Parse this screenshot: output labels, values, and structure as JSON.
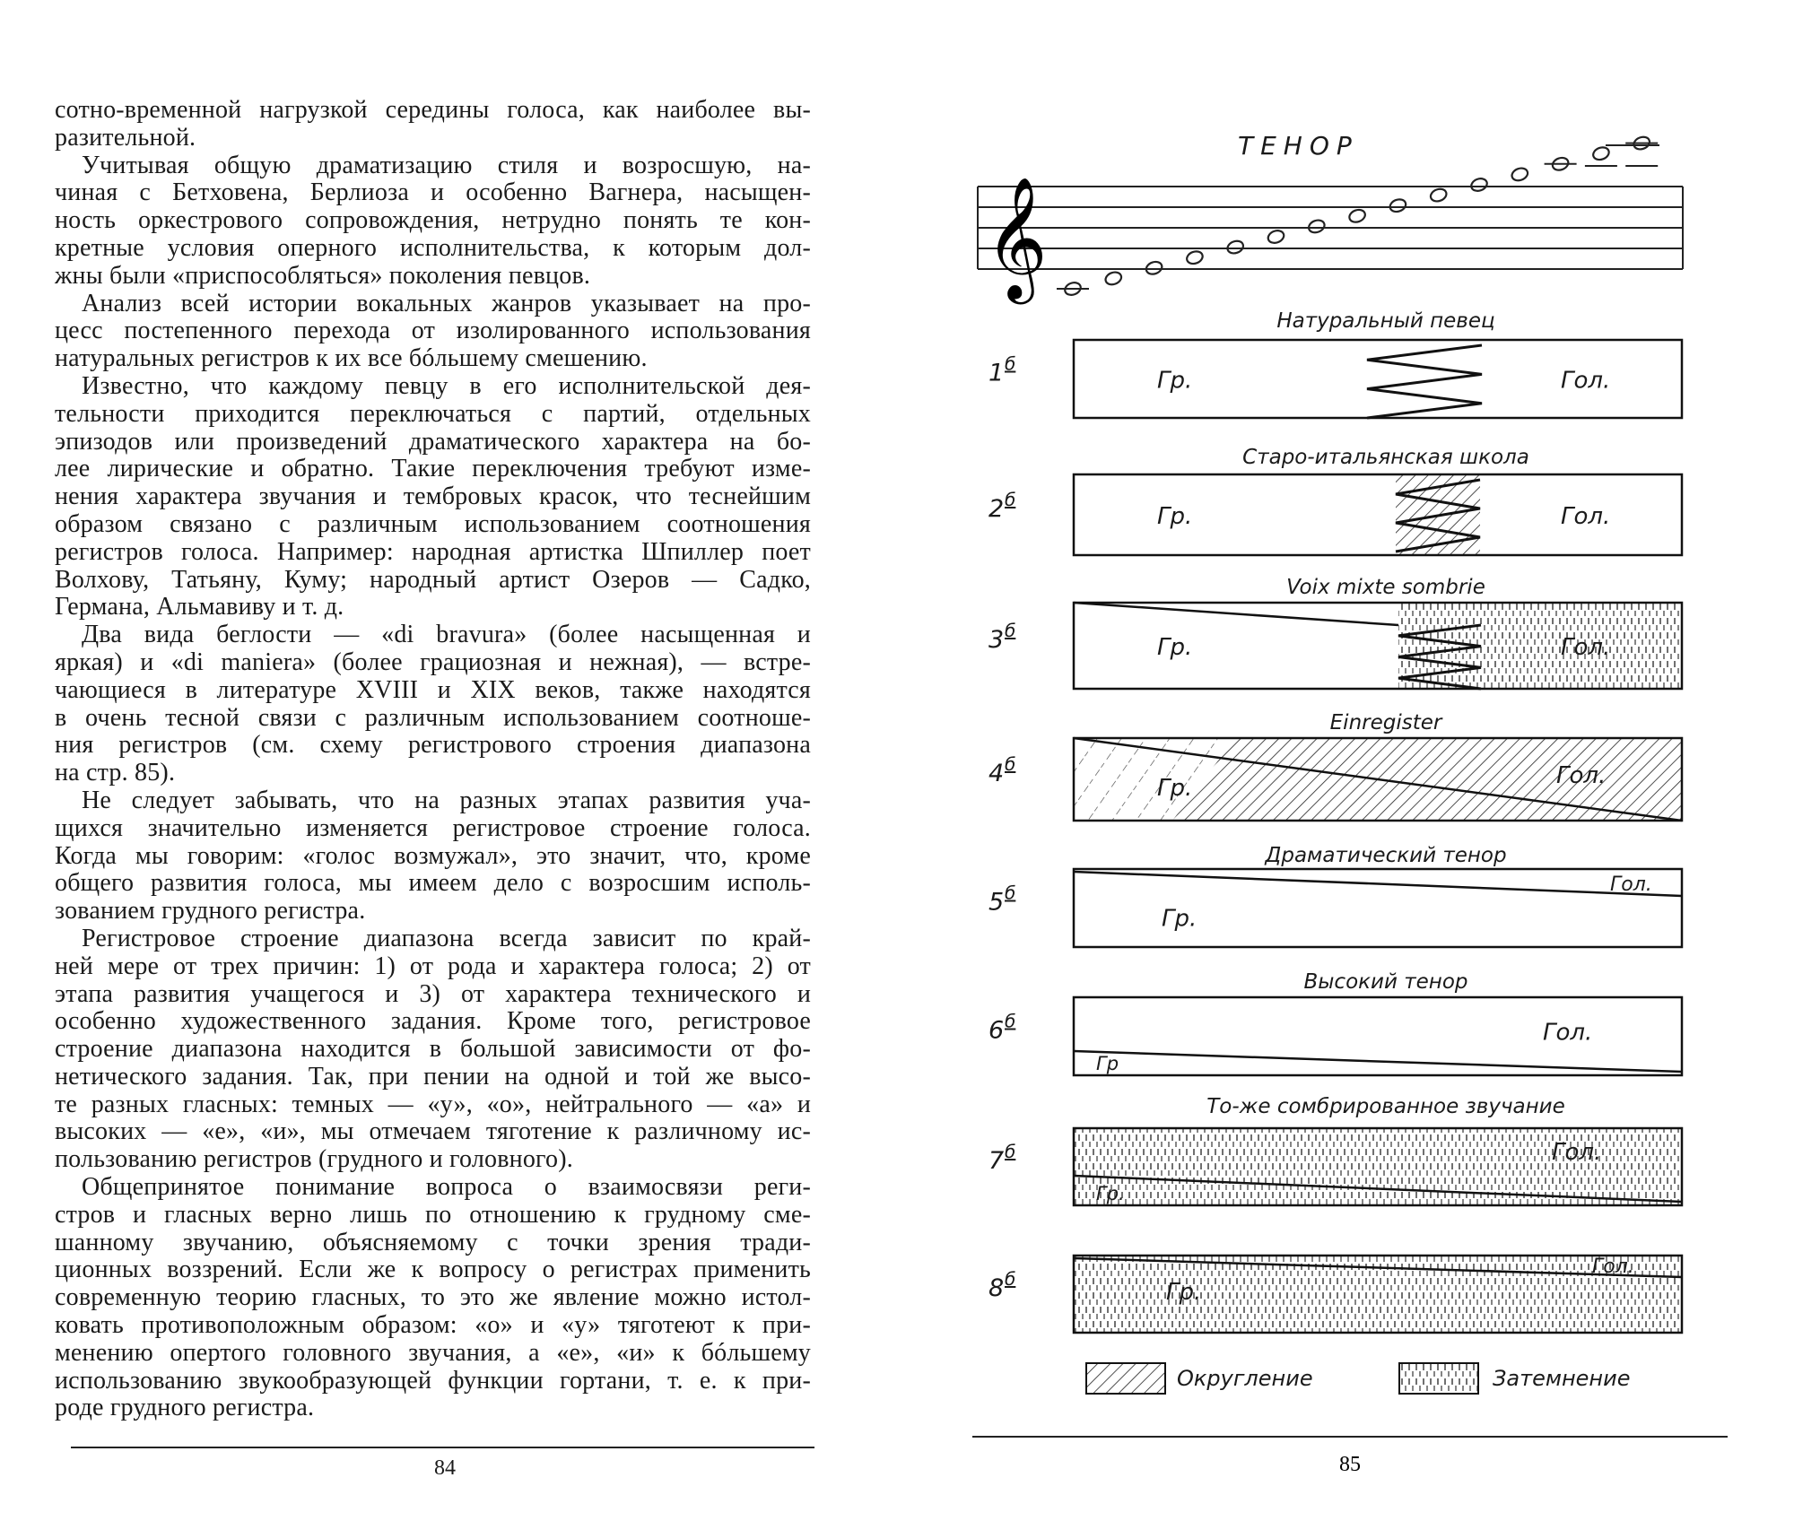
{
  "left_page": {
    "page_number": "84",
    "paragraphs": [
      {
        "lines": [
          "сотно-временной нагрузкой середины голоса, как наиболее вы-",
          "разительной."
        ]
      },
      {
        "lines": [
          "Учитывая общую драматизацию стиля и возросшую, на-",
          "чиная с Бетховена, Берлиоза и особенно Вагнера, насыщен-",
          "ность оркестрового сопровождения, нетрудно понять те кон-",
          "кретные условия оперного исполнительства, к которым дол-",
          "жны были «приспособляться» поколения певцов."
        ]
      },
      {
        "lines": [
          "Анализ всей истории вокальных жанров указывает на про-",
          "цесс постепенного перехода от изолированного использования",
          "натуральных регистров к их все бóльшему смешению."
        ]
      },
      {
        "lines": [
          "Известно, что каждому певцу в его исполнительской дея-",
          "тельности приходится переключаться с партий, отдельных",
          "эпизодов или произведений драматического характера на бо-",
          "лее лирические и обратно. Такие переключения требуют изме-",
          "нения характера звучания и тембровых красок, что теснейшим",
          "образом связано с различным использованием соотношения",
          "регистров голоса. Например: народная артистка Шпиллер поет",
          "Волхову, Татьяну, Куму; народный артист Озеров — Садко,",
          "Германа, Альмавиву и т. д."
        ]
      },
      {
        "lines": [
          "Два вида беглости — «di bravura» (более насыщенная и",
          "яркая) и «di maniera» (более грациозная и нежная), — встре-",
          "чающиеся в литературе XVIII и XIX веков, также находятся",
          "в очень тесной связи с различным использованием соотноше-",
          "ния регистров (см. схему регистрового строения диапазона",
          "на стр. 85)."
        ]
      },
      {
        "lines": [
          "Не следует забывать, что на разных этапах развития уча-",
          "щихся значительно изменяется регистровое строение голоса.",
          "Когда мы говорим: «голос возмужал», это значит, что, кроме",
          "общего развития голоса, мы имеем дело с возросшим исполь-",
          "зованием грудного регистра."
        ]
      },
      {
        "lines": [
          "Регистровое строение диапазона всегда зависит по край-",
          "ней мере от трех причин: 1) от рода и характера голоса; 2) от",
          "этапа развития учащегося и 3) от характера технического и",
          "особенно художественного задания. Кроме того, регистровое",
          "строение диапазона находится в большой зависимости от фо-",
          "нетического задания. Так, при пении на одной и той же высо-",
          "те разных гласных: темных — «у», «о», нейтрального — «а» и",
          "высоких — «е», «и», мы отмечаем тяготение к различному ис-",
          "пользованию регистров (грудного и головного)."
        ]
      },
      {
        "lines": [
          "Общепринятое понимание вопроса о взаимосвязи реги-",
          "стров и гласных верно лишь по отношению к грудному сме-",
          "шанному звучанию, объясняемому с точки зрения тради-",
          "ционных воззрений. Если же к вопросу о регистрах применить",
          "современную теорию гласных, то это же явление можно истол-",
          "ковать противоположным образом: «о» и «у» тяготеют к при-",
          "менению опертого головного звучания, а «е», «и» к бóльшему",
          "использованию звукообразующей функции гортани, т. е. к при-",
          "роде грудного регистра."
        ]
      }
    ]
  },
  "right_page": {
    "page_number": "85",
    "title": "ТЕНОР",
    "clef_icon": "treble-clef",
    "diagrams": [
      {
        "number": "1",
        "sup": "б",
        "title": "Натуральный певец",
        "chest": "Гр.",
        "head": "Гол."
      },
      {
        "number": "2",
        "sup": "б",
        "title": "Старо-итальянская школа",
        "chest": "Гр.",
        "head": "Гол."
      },
      {
        "number": "3",
        "sup": "б",
        "title": "Voix mixte sombrie",
        "chest": "Гр.",
        "head": "Гол."
      },
      {
        "number": "4",
        "sup": "б",
        "title": "Einregister",
        "chest": "Гр.",
        "head": "Гол."
      },
      {
        "number": "5",
        "sup": "б",
        "title": "Драматический тенор",
        "chest": "Гр.",
        "head": "Гол."
      },
      {
        "number": "6",
        "sup": "б",
        "title": "Высокий тенор",
        "chest": "Гр",
        "head": "Гол."
      },
      {
        "number": "7",
        "sup": "б",
        "title": "То-же сомбрированное звучание",
        "chest": "Гр.",
        "head": "Гол."
      },
      {
        "number": "8",
        "sup": "б",
        "title": "",
        "chest": "Гр.",
        "head": "Гол."
      }
    ],
    "legend": [
      {
        "pattern": "hatch",
        "label": "Округление"
      },
      {
        "pattern": "dashes",
        "label": "Затемнение"
      }
    ]
  }
}
